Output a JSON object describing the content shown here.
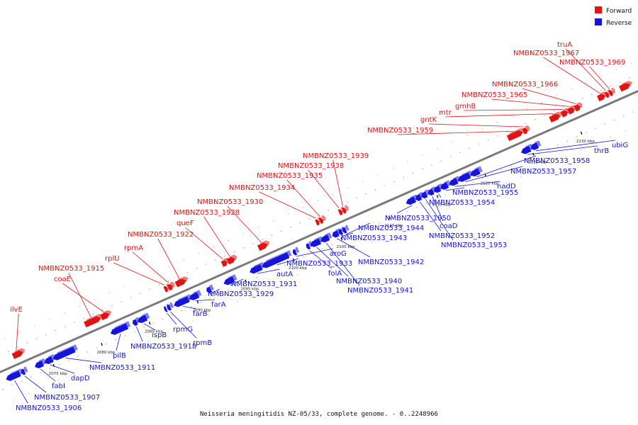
{
  "caption": "Neisseria meningitidis NZ-05/33, complete genome. - 0..2248966",
  "legend": {
    "forward": {
      "label": "Forward",
      "color": "#e11414"
    },
    "reverse": {
      "label": "Reverse",
      "color": "#1414dc"
    }
  },
  "ticks": [
    {
      "label": "2075 kbp",
      "pos": 2075
    },
    {
      "label": "2080 kbp",
      "pos": 2080
    },
    {
      "label": "2085 kbp",
      "pos": 2085
    },
    {
      "label": "2090 kbp",
      "pos": 2090
    },
    {
      "label": "2095 kbp",
      "pos": 2095
    },
    {
      "label": "2100 kbp",
      "pos": 2100
    },
    {
      "label": "2105 kbp",
      "pos": 2105
    },
    {
      "label": "2110 kbp",
      "pos": 2110
    },
    {
      "label": "2115 kbp",
      "pos": 2115
    },
    {
      "label": "2120 kbp",
      "pos": 2120
    },
    {
      "label": "2125 kbp",
      "pos": 2125
    },
    {
      "label": "2130 kbp",
      "pos": 2130
    }
  ],
  "forward_genes": [
    {
      "name": "ilvE",
      "start": 2071.8,
      "end": 2072.8
    },
    {
      "name": "coaE",
      "start": 2081.0,
      "end": 2081.8
    },
    {
      "name": "NMBNZ0533_1915",
      "start": 2079.3,
      "end": 2080.9
    },
    {
      "name": "rplU",
      "start": 2087.6,
      "end": 2087.9
    },
    {
      "name": "rpmA",
      "start": 2088.0,
      "end": 2088.4
    },
    {
      "name": "NMBNZ0533_1922",
      "start": 2088.8,
      "end": 2089.8
    },
    {
      "name": "queF",
      "start": 2093.6,
      "end": 2094.1
    },
    {
      "name": "NMBNZ0533_1928",
      "start": 2094.2,
      "end": 2094.9
    },
    {
      "name": "NMBNZ0533_1930",
      "start": 2097.4,
      "end": 2098.3
    },
    {
      "name": "NMBNZ0533_1934",
      "start": 2103.4,
      "end": 2103.7
    },
    {
      "name": "NMBNZ0533_1935",
      "start": 2103.8,
      "end": 2104.1
    },
    {
      "name": "NMBNZ0533_1938",
      "start": 2105.8,
      "end": 2106.1
    },
    {
      "name": "NMBNZ0533_1939",
      "start": 2106.2,
      "end": 2106.5
    },
    {
      "name": "NMBNZ0533_1959",
      "start": 2123.4,
      "end": 2124.9
    },
    {
      "name": "gntK",
      "start": 2125.0,
      "end": 2125.4
    },
    {
      "name": "mtr",
      "start": 2127.8,
      "end": 2128.8
    },
    {
      "name": "gmhB",
      "start": 2129.0,
      "end": 2129.6
    },
    {
      "name": "NMBNZ0533_1965",
      "start": 2129.7,
      "end": 2130.3
    },
    {
      "name": "NMBNZ0533_1966",
      "start": 2130.4,
      "end": 2130.9
    },
    {
      "name": "NMBNZ0533_1967",
      "start": 2132.8,
      "end": 2133.5
    },
    {
      "name": "truA",
      "start": 2133.6,
      "end": 2133.9
    },
    {
      "name": "NMBNZ0533_1969",
      "start": 2134.0,
      "end": 2134.3
    },
    {
      "name": "",
      "start": 2135.1,
      "end": 2136.1
    }
  ],
  "reverse_genes": [
    {
      "name": "NMBNZ0533_1906",
      "start": 2070.3,
      "end": 2071.7
    },
    {
      "name": "NMBNZ0533_1907",
      "start": 2071.9,
      "end": 2072.2
    },
    {
      "name": "fabI",
      "start": 2073.3,
      "end": 2074.1
    },
    {
      "name": "dapD",
      "start": 2074.3,
      "end": 2075.1
    },
    {
      "name": "NMBNZ0533_1911",
      "start": 2075.2,
      "end": 2077.4
    },
    {
      "name": "pilB",
      "start": 2081.2,
      "end": 2082.9
    },
    {
      "name": "NMBNZ0533_1918",
      "start": 2083.5,
      "end": 2083.9
    },
    {
      "name": "ispB",
      "start": 2084.0,
      "end": 2084.9
    },
    {
      "name": "rpmG",
      "start": 2086.8,
      "end": 2087.0
    },
    {
      "name": "rpmB",
      "start": 2087.1,
      "end": 2087.4
    },
    {
      "name": "farB",
      "start": 2087.8,
      "end": 2089.3
    },
    {
      "name": "farA",
      "start": 2089.4,
      "end": 2090.3
    },
    {
      "name": "NMBNZ0533_1929",
      "start": 2091.2,
      "end": 2091.6
    },
    {
      "name": "NMBNZ0533_1931",
      "start": 2093.0,
      "end": 2094.0
    },
    {
      "name": "autA",
      "start": 2095.7,
      "end": 2096.9
    },
    {
      "name": "NMBNZ0533_1933",
      "start": 2097.0,
      "end": 2099.7
    },
    {
      "name": "aroG",
      "start": 2100.2,
      "end": 2100.5
    },
    {
      "name": "folA",
      "start": 2101.6,
      "end": 2101.9
    },
    {
      "name": "NMBNZ0533_1940",
      "start": 2102.0,
      "end": 2103.0
    },
    {
      "name": "NMBNZ0533_1941",
      "start": 2103.1,
      "end": 2103.9
    },
    {
      "name": "NMBNZ0533_1942",
      "start": 2104.3,
      "end": 2104.9
    },
    {
      "name": "NMBNZ0533_1943",
      "start": 2105.0,
      "end": 2105.3
    },
    {
      "name": "NMBNZ0533_1944",
      "start": 2105.4,
      "end": 2105.7
    },
    {
      "name": "NMBNZ0533_1950",
      "start": 2112.0,
      "end": 2112.9
    },
    {
      "name": "NMBNZ0533_1952",
      "start": 2113.0,
      "end": 2113.5
    },
    {
      "name": "NMBNZ0533_1953",
      "start": 2113.6,
      "end": 2114.1
    },
    {
      "name": "coaD",
      "start": 2114.3,
      "end": 2114.8
    },
    {
      "name": "NMBNZ0533_1954",
      "start": 2114.9,
      "end": 2115.5
    },
    {
      "name": "NMBNZ0533_1955",
      "start": 2115.6,
      "end": 2116.3
    },
    {
      "name": "nadD",
      "start": 2116.5,
      "end": 2117.3
    },
    {
      "name": "NMBNZ0533_1957",
      "start": 2117.4,
      "end": 2118.6
    },
    {
      "name": "NMBNZ0533_1958",
      "start": 2118.7,
      "end": 2119.6
    },
    {
      "name": "thrB",
      "start": 2124.0,
      "end": 2124.9
    },
    {
      "name": "ubiG",
      "start": 2125.0,
      "end": 2125.7
    }
  ],
  "labels": {
    "forward": [
      {
        "gene": "ilvE",
        "text": "ilvE"
      },
      {
        "gene": "coaE",
        "text": "coaE"
      },
      {
        "gene": "NMBNZ0533_1915",
        "text": "NMBNZ0533_1915"
      },
      {
        "gene": "rplU",
        "text": "rplU"
      },
      {
        "gene": "rpmA",
        "text": "rpmA"
      },
      {
        "gene": "NMBNZ0533_1922",
        "text": "NMBNZ0533_1922"
      },
      {
        "gene": "queF",
        "text": "queF"
      },
      {
        "gene": "NMBNZ0533_1928",
        "text": "NMBNZ0533_1928"
      },
      {
        "gene": "NMBNZ0533_1930",
        "text": "NMBNZ0533_1930"
      },
      {
        "gene": "NMBNZ0533_1934",
        "text": "NMBNZ0533_1934"
      },
      {
        "gene": "NMBNZ0533_1935",
        "text": "NMBNZ0533_1935"
      },
      {
        "gene": "NMBNZ0533_1938",
        "text": "NMBNZ0533_1938"
      },
      {
        "gene": "NMBNZ0533_1939",
        "text": "NMBNZ0533_1939"
      },
      {
        "gene": "NMBNZ0533_1959",
        "text": "NMBNZ0533_1959"
      },
      {
        "gene": "gntK",
        "text": "gntK"
      },
      {
        "gene": "mtr",
        "text": "mtr"
      },
      {
        "gene": "gmhB",
        "text": "gmhB"
      },
      {
        "gene": "NMBNZ0533_1965",
        "text": "NMBNZ0533_1965"
      },
      {
        "gene": "NMBNZ0533_1966",
        "text": "NMBNZ0533_1966"
      },
      {
        "gene": "NMBNZ0533_1967",
        "text": "NMBNZ0533_1967"
      },
      {
        "gene": "truA",
        "text": "truA"
      },
      {
        "gene": "NMBNZ0533_1969",
        "text": "NMBNZ0533_1969"
      }
    ],
    "reverse": [
      {
        "gene": "NMBNZ0533_1906",
        "text": "NMBNZ0533_1906"
      },
      {
        "gene": "NMBNZ0533_1907",
        "text": "NMBNZ0533_1907"
      },
      {
        "gene": "fabI",
        "text": "fabI"
      },
      {
        "gene": "dapD",
        "text": "dapD"
      },
      {
        "gene": "NMBNZ0533_1911",
        "text": "NMBNZ0533_1911"
      },
      {
        "gene": "pilB",
        "text": "pilB"
      },
      {
        "gene": "NMBNZ0533_1918",
        "text": "NMBNZ0533_1918"
      },
      {
        "gene": "ispB",
        "text": "ispB"
      },
      {
        "gene": "rpmG",
        "text": "rpmG"
      },
      {
        "gene": "rpmB",
        "text": "rpmB"
      },
      {
        "gene": "farB",
        "text": "farB"
      },
      {
        "gene": "farA",
        "text": "farA"
      },
      {
        "gene": "NMBNZ0533_1929",
        "text": "NMBNZ0533_1929"
      },
      {
        "gene": "NMBNZ0533_1931",
        "text": "NMBNZ0533_1931"
      },
      {
        "gene": "autA",
        "text": "autA"
      },
      {
        "gene": "NMBNZ0533_1933",
        "text": "NMBNZ0533_1933"
      },
      {
        "gene": "aroG",
        "text": "aroG"
      },
      {
        "gene": "folA",
        "text": "folA"
      },
      {
        "gene": "NMBNZ0533_1940",
        "text": "NMBNZ0533_1940"
      },
      {
        "gene": "NMBNZ0533_1941",
        "text": "NMBNZ0533_1941"
      },
      {
        "gene": "NMBNZ0533_1942",
        "text": "NMBNZ0533_1942"
      },
      {
        "gene": "NMBNZ0533_1943",
        "text": "NMBNZ0533_1943"
      },
      {
        "gene": "NMBNZ0533_1944",
        "text": "NMBNZ0533_1944"
      },
      {
        "gene": "NMBNZ0533_1950",
        "text": "NMBNZ0533_1950"
      },
      {
        "gene": "NMBNZ0533_1952",
        "text": "NMBNZ0533_1952"
      },
      {
        "gene": "NMBNZ0533_1953",
        "text": "NMBNZ0533_1953"
      },
      {
        "gene": "coaD",
        "text": "coaD"
      },
      {
        "gene": "NMBNZ0533_1954",
        "text": "NMBNZ0533_1954"
      },
      {
        "gene": "NMBNZ0533_1955",
        "text": "NMBNZ0533_1955"
      },
      {
        "gene": "nadD",
        "text": "nadD"
      },
      {
        "gene": "NMBNZ0533_1957",
        "text": "NMBNZ0533_1957"
      },
      {
        "gene": "NMBNZ0533_1958",
        "text": "NMBNZ0533_1958"
      },
      {
        "gene": "thrB",
        "text": "thrB"
      },
      {
        "gene": "ubiG",
        "text": "ubiG"
      }
    ]
  }
}
